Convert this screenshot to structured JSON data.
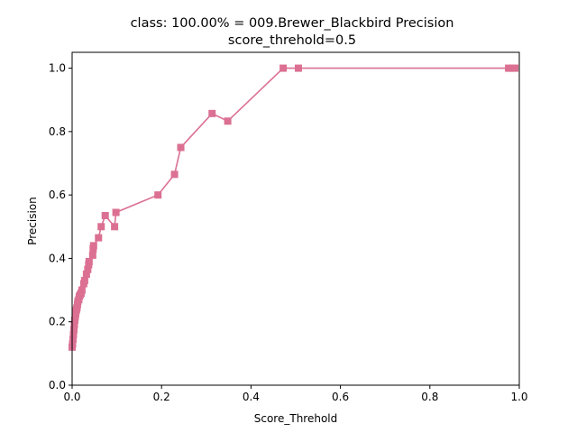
{
  "chart_data": {
    "type": "line",
    "title_line1": "class: 100.00% = 009.Brewer_Blackbird Precision",
    "title_line2": "score_threhold=0.5",
    "xlabel": "Score_Threhold",
    "ylabel": "Precision",
    "xlim": [
      0,
      1
    ],
    "ylim": [
      0,
      1.05
    ],
    "xticks": [
      0.0,
      0.2,
      0.4,
      0.6,
      0.8,
      1.0
    ],
    "xtick_labels": [
      "0.0",
      "0.2",
      "0.4",
      "0.6",
      "0.8",
      "1.0"
    ],
    "yticks": [
      0.0,
      0.2,
      0.4,
      0.6,
      0.8,
      1.0
    ],
    "ytick_labels": [
      "0.0",
      "0.2",
      "0.4",
      "0.6",
      "0.8",
      "1.0"
    ],
    "grid": false,
    "color": "#db7093",
    "marker": "square",
    "series": [
      {
        "x": [
          0.0,
          0.001,
          0.002,
          0.003,
          0.004,
          0.005,
          0.006,
          0.007,
          0.008,
          0.009,
          0.01,
          0.011,
          0.012,
          0.013,
          0.015,
          0.016,
          0.018,
          0.02,
          0.022,
          0.026,
          0.028,
          0.032,
          0.035,
          0.037,
          0.038,
          0.046,
          0.047,
          0.048,
          0.059,
          0.065,
          0.074,
          0.095,
          0.098,
          0.192,
          0.229,
          0.243,
          0.313,
          0.348,
          0.472,
          0.506,
          0.976,
          0.984,
          0.99
        ],
        "y": [
          0.12,
          0.13,
          0.145,
          0.16,
          0.175,
          0.19,
          0.205,
          0.215,
          0.225,
          0.235,
          0.24,
          0.245,
          0.255,
          0.265,
          0.27,
          0.28,
          0.285,
          0.29,
          0.3,
          0.32,
          0.33,
          0.35,
          0.365,
          0.38,
          0.39,
          0.41,
          0.43,
          0.44,
          0.465,
          0.5,
          0.535,
          0.5,
          0.545,
          0.6,
          0.665,
          0.75,
          0.857,
          0.833,
          1.0,
          1.0,
          1.0,
          1.0,
          1.0
        ]
      }
    ]
  }
}
